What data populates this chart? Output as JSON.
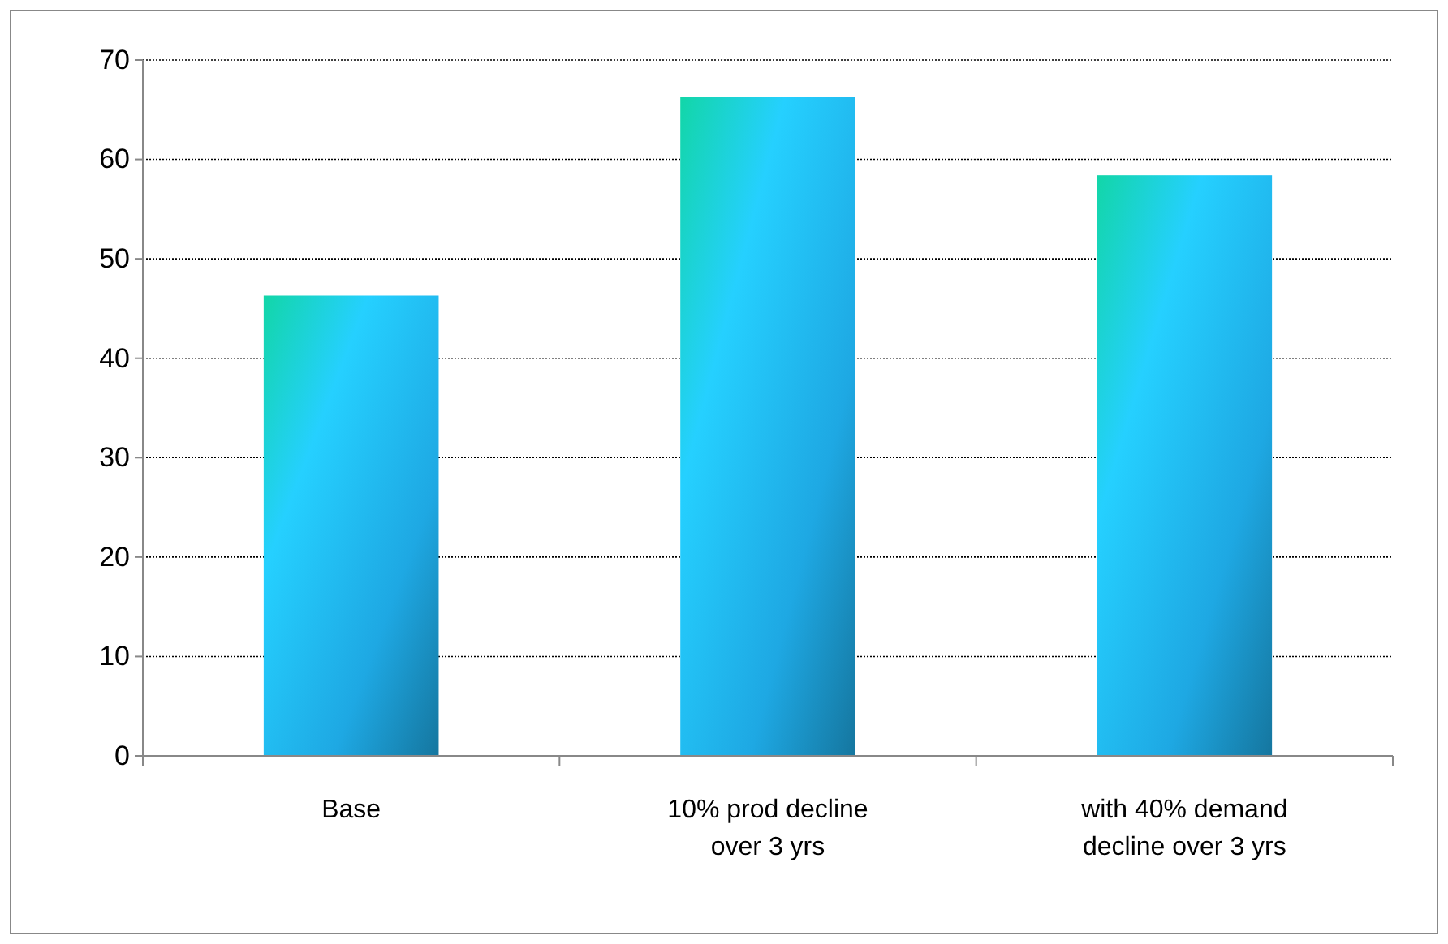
{
  "chart_data": {
    "type": "bar",
    "categories": [
      "Base",
      "10% prod decline over 3 yrs",
      "with 40% demand decline over 3 yrs"
    ],
    "values": [
      46.3,
      66.3,
      58.4
    ],
    "color": "#1ea8e3",
    "ylim": [
      0,
      70
    ],
    "yticks": [
      0,
      10,
      20,
      30,
      40,
      50,
      60,
      70
    ],
    "grid": "y"
  }
}
